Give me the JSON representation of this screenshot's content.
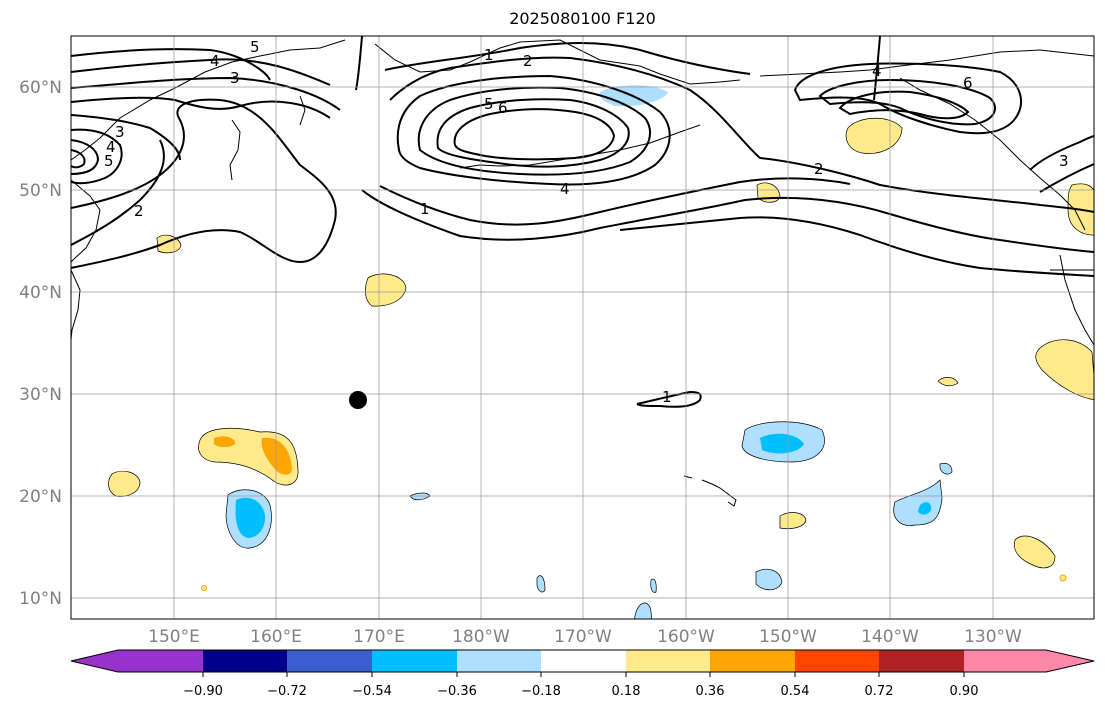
{
  "title": "2025080100 F120",
  "map": {
    "lat_labels": [
      "60°N",
      "50°N",
      "40°N",
      "30°N",
      "20°N",
      "10°N"
    ],
    "lon_labels": [
      "150°E",
      "160°E",
      "170°E",
      "180°W",
      "170°W",
      "160°W",
      "150°W",
      "140°W",
      "130°W"
    ],
    "contour_labels": [
      "5",
      "4",
      "3",
      "3",
      "4",
      "5",
      "2",
      "1",
      "2",
      "5",
      "6",
      "4",
      "1",
      "2",
      "4",
      "6",
      "3",
      "1"
    ]
  },
  "colorbar": {
    "ticks": [
      "−0.90",
      "−0.72",
      "−0.54",
      "−0.36",
      "−0.18",
      "0.18",
      "0.36",
      "0.54",
      "0.72",
      "0.90"
    ],
    "colors": [
      "#9932CC",
      "#00008B",
      "#3A5ECC",
      "#00BFFF",
      "#AEDFFF",
      "#FFFFFF",
      "#FFE98A",
      "#FFA500",
      "#FF4500",
      "#B22222",
      "#FF88AA"
    ]
  },
  "colors": {
    "fill_positive_light": "#FFE98A",
    "fill_positive_mid": "#FFA500",
    "fill_negative_light": "#AEDFFF",
    "fill_negative_mid": "#00BFFF"
  }
}
